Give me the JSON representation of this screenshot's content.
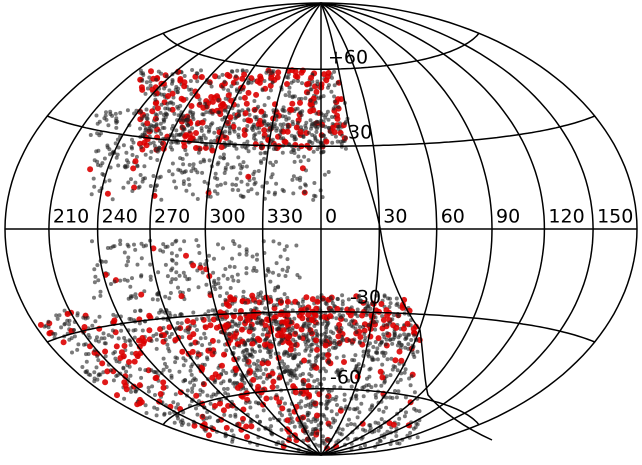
{
  "map": {
    "meridian_labels": [
      "210",
      "240",
      "270",
      "300",
      "330",
      "0",
      "30",
      "60",
      "90",
      "120",
      "150"
    ],
    "parallel_labels": [
      "+60",
      "30",
      "-30",
      "-60"
    ]
  }
}
